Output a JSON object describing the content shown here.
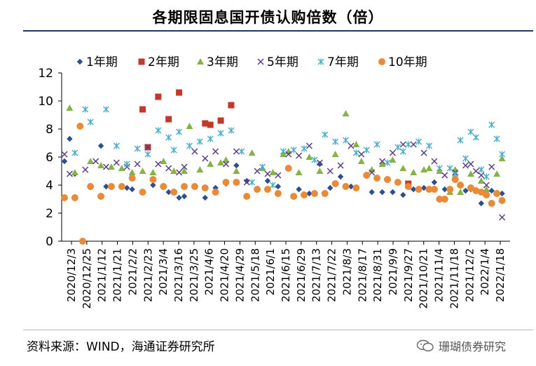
{
  "title": "各期限固息国开债认购倍数（倍）",
  "source": "资料来源：WIND，海通证券研究所",
  "watermark": "珊瑚债券研究",
  "chart_data": {
    "type": "scatter",
    "title": "各期限固息国开债认购倍数（倍）",
    "xlabel": "",
    "ylabel": "",
    "ylim": [
      0,
      12
    ],
    "yticks": [
      0,
      2,
      4,
      6,
      8,
      10,
      12
    ],
    "x_tick_labels": [
      "2020/12/3",
      "2020/12/25",
      "2021/1/12",
      "2021/1/21",
      "2021/2/2",
      "2021/2/23",
      "2021/3/4",
      "2021/3/16",
      "2021/3/25",
      "2021/4/6",
      "2021/4/20",
      "2021/4/29",
      "2021/5/18",
      "2021/6/1",
      "2021/6/15",
      "2021/6/29",
      "2021/7/13",
      "2021/7/22",
      "2021/8/3",
      "2021/8/17",
      "2021/8/31",
      "2021/9/9",
      "2021/9/27",
      "2021/10/21",
      "2021/11/4",
      "2021/11/18",
      "2021/12/2",
      "2022/1/4",
      "2022/1/18"
    ],
    "x_range": [
      0,
      85
    ],
    "grid": false,
    "legend": "top",
    "series": [
      {
        "name": "1年期",
        "marker": "diamond",
        "color": "#2e4e8c",
        "points": [
          [
            0,
            5.7
          ],
          [
            1,
            7.3
          ],
          [
            2,
            4.8
          ],
          [
            7,
            6.8
          ],
          [
            8,
            3.9
          ],
          [
            12,
            3.8
          ],
          [
            13,
            3.7
          ],
          [
            17,
            4.0
          ],
          [
            20,
            3.5
          ],
          [
            22,
            3.1
          ],
          [
            23,
            3.2
          ],
          [
            27,
            3.1
          ],
          [
            29,
            3.8
          ],
          [
            31,
            4.1
          ],
          [
            33,
            5.4
          ],
          [
            35,
            4.3
          ],
          [
            39,
            4.3
          ],
          [
            41,
            3.9
          ],
          [
            45,
            3.7
          ],
          [
            47,
            3.4
          ],
          [
            49,
            5.5
          ],
          [
            51,
            3.8
          ],
          [
            53,
            4.6
          ],
          [
            55,
            3.9
          ],
          [
            59,
            3.5
          ],
          [
            61,
            3.5
          ],
          [
            63,
            3.5
          ],
          [
            65,
            3.3
          ],
          [
            67,
            3.7
          ],
          [
            69,
            3.8
          ],
          [
            71,
            4.2
          ],
          [
            73,
            3.7
          ],
          [
            75,
            4.5
          ],
          [
            77,
            3.6
          ],
          [
            78,
            3.7
          ],
          [
            80,
            2.7
          ],
          [
            82,
            3.6
          ],
          [
            84,
            3.4
          ]
        ]
      },
      {
        "name": "2年期",
        "marker": "square",
        "color": "#c0392b",
        "points": [
          [
            15,
            9.4
          ],
          [
            16,
            6.7
          ],
          [
            18,
            10.3
          ],
          [
            20,
            8.7
          ],
          [
            22,
            10.6
          ],
          [
            27,
            8.4
          ],
          [
            28,
            8.3
          ],
          [
            30,
            8.6
          ],
          [
            32,
            9.7
          ],
          [
            66,
            4.1
          ]
        ]
      },
      {
        "name": "3年期",
        "marker": "triangle",
        "color": "#86b347",
        "points": [
          [
            1,
            9.5
          ],
          [
            2,
            4.9
          ],
          [
            5,
            5.7
          ],
          [
            7,
            5.4
          ],
          [
            9,
            5.3
          ],
          [
            11,
            5.2
          ],
          [
            13,
            4.9
          ],
          [
            15,
            5.0
          ],
          [
            17,
            4.9
          ],
          [
            19,
            5.7
          ],
          [
            21,
            5.0
          ],
          [
            23,
            5.0
          ],
          [
            24,
            8.2
          ],
          [
            26,
            5.1
          ],
          [
            28,
            5.5
          ],
          [
            30,
            5.6
          ],
          [
            31,
            5.8
          ],
          [
            33,
            5.0
          ],
          [
            36,
            6.3
          ],
          [
            38,
            5.2
          ],
          [
            40,
            4.9
          ],
          [
            42,
            6.2
          ],
          [
            43,
            6.4
          ],
          [
            45,
            4.9
          ],
          [
            47,
            6.0
          ],
          [
            49,
            5.0
          ],
          [
            52,
            6.2
          ],
          [
            54,
            9.1
          ],
          [
            56,
            6.9
          ],
          [
            57,
            5.7
          ],
          [
            59,
            5.1
          ],
          [
            61,
            5.5
          ],
          [
            63,
            5.8
          ],
          [
            65,
            5.2
          ],
          [
            67,
            4.9
          ],
          [
            69,
            5.1
          ],
          [
            70,
            5.2
          ],
          [
            72,
            5.0
          ],
          [
            74,
            3.5
          ],
          [
            75,
            5.1
          ],
          [
            76,
            3.5
          ],
          [
            78,
            4.8
          ],
          [
            80,
            4.3
          ],
          [
            81,
            3.7
          ],
          [
            83,
            4.8
          ],
          [
            84,
            5.9
          ]
        ]
      },
      {
        "name": "5年期",
        "marker": "x",
        "color": "#5b3b86",
        "points": [
          [
            0,
            6.2
          ],
          [
            1,
            4.8
          ],
          [
            4,
            5.1
          ],
          [
            6,
            5.7
          ],
          [
            8,
            5.3
          ],
          [
            10,
            5.6
          ],
          [
            12,
            5.3
          ],
          [
            14,
            5.5
          ],
          [
            16,
            6.7
          ],
          [
            18,
            5.5
          ],
          [
            20,
            5.2
          ],
          [
            22,
            4.9
          ],
          [
            23,
            5.3
          ],
          [
            25,
            6.4
          ],
          [
            27,
            5.9
          ],
          [
            29,
            6.4
          ],
          [
            31,
            5.5
          ],
          [
            33,
            6.4
          ],
          [
            35,
            4.2
          ],
          [
            37,
            5.0
          ],
          [
            39,
            4.8
          ],
          [
            41,
            4.7
          ],
          [
            43,
            6.2
          ],
          [
            45,
            6.1
          ],
          [
            47,
            6.8
          ],
          [
            49,
            5.6
          ],
          [
            51,
            5.0
          ],
          [
            53,
            5.4
          ],
          [
            55,
            6.8
          ],
          [
            57,
            6.2
          ],
          [
            59,
            4.9
          ],
          [
            61,
            5.7
          ],
          [
            63,
            6.3
          ],
          [
            65,
            6.9
          ],
          [
            67,
            6.9
          ],
          [
            69,
            6.3
          ],
          [
            71,
            5.7
          ],
          [
            73,
            4.7
          ],
          [
            75,
            4.9
          ],
          [
            77,
            5.4
          ],
          [
            78,
            5.5
          ],
          [
            79,
            5.0
          ],
          [
            80,
            4.7
          ],
          [
            81,
            4.0
          ],
          [
            82,
            5.3
          ],
          [
            84,
            1.7
          ]
        ]
      },
      {
        "name": "7年期",
        "marker": "asterisk",
        "color": "#4bacc6",
        "points": [
          [
            2,
            6.3
          ],
          [
            4,
            9.4
          ],
          [
            5,
            8.5
          ],
          [
            8,
            9.4
          ],
          [
            10,
            6.8
          ],
          [
            12,
            5.5
          ],
          [
            14,
            6.6
          ],
          [
            16,
            6.2
          ],
          [
            18,
            7.9
          ],
          [
            20,
            7.4
          ],
          [
            21,
            6.5
          ],
          [
            22,
            7.8
          ],
          [
            24,
            6.8
          ],
          [
            26,
            7.1
          ],
          [
            28,
            7.3
          ],
          [
            30,
            7.7
          ],
          [
            32,
            7.9
          ],
          [
            34,
            6.4
          ],
          [
            36,
            4.2
          ],
          [
            38,
            5.3
          ],
          [
            40,
            4.0
          ],
          [
            42,
            6.4
          ],
          [
            44,
            6.5
          ],
          [
            46,
            6.6
          ],
          [
            48,
            5.8
          ],
          [
            50,
            7.6
          ],
          [
            52,
            7.1
          ],
          [
            54,
            7.2
          ],
          [
            56,
            6.3
          ],
          [
            58,
            6.5
          ],
          [
            60,
            6.9
          ],
          [
            62,
            5.6
          ],
          [
            64,
            6.7
          ],
          [
            65,
            6.4
          ],
          [
            66,
            6.9
          ],
          [
            68,
            7.1
          ],
          [
            70,
            6.8
          ],
          [
            72,
            5.2
          ],
          [
            74,
            5.2
          ],
          [
            75,
            4.8
          ],
          [
            76,
            7.2
          ],
          [
            77,
            5.9
          ],
          [
            78,
            7.8
          ],
          [
            79,
            7.4
          ],
          [
            80,
            5.1
          ],
          [
            81,
            4.6
          ],
          [
            82,
            8.3
          ],
          [
            83,
            7.3
          ],
          [
            84,
            6.2
          ]
        ]
      },
      {
        "name": "10年期",
        "marker": "circle",
        "color": "#e88a38",
        "points": [
          [
            0,
            3.1
          ],
          [
            2,
            3.1
          ],
          [
            3,
            8.2
          ],
          [
            3.5,
            0.0
          ],
          [
            5,
            3.9
          ],
          [
            7,
            3.2
          ],
          [
            9,
            3.9
          ],
          [
            11,
            3.9
          ],
          [
            13,
            4.5
          ],
          [
            15,
            3.5
          ],
          [
            17,
            4.4
          ],
          [
            19,
            3.9
          ],
          [
            21,
            3.5
          ],
          [
            23,
            3.9
          ],
          [
            25,
            3.9
          ],
          [
            27,
            3.8
          ],
          [
            29,
            3.5
          ],
          [
            31,
            4.2
          ],
          [
            33,
            4.2
          ],
          [
            35,
            3.2
          ],
          [
            37,
            3.7
          ],
          [
            39,
            3.7
          ],
          [
            41,
            3.4
          ],
          [
            43,
            5.2
          ],
          [
            44,
            3.2
          ],
          [
            46,
            3.3
          ],
          [
            48,
            3.4
          ],
          [
            50,
            3.4
          ],
          [
            52,
            4.1
          ],
          [
            54,
            3.9
          ],
          [
            56,
            3.8
          ],
          [
            58,
            4.7
          ],
          [
            60,
            4.5
          ],
          [
            62,
            4.4
          ],
          [
            64,
            4.2
          ],
          [
            66,
            3.9
          ],
          [
            68,
            3.7
          ],
          [
            70,
            3.7
          ],
          [
            71,
            3.7
          ],
          [
            72,
            3.0
          ],
          [
            73,
            3.0
          ],
          [
            74,
            3.7
          ],
          [
            75,
            4.4
          ],
          [
            76,
            4.0
          ],
          [
            78,
            3.8
          ],
          [
            79,
            3.6
          ],
          [
            80,
            3.5
          ],
          [
            81,
            3.3
          ],
          [
            82,
            2.7
          ],
          [
            83,
            3.4
          ],
          [
            84,
            2.9
          ]
        ]
      }
    ]
  }
}
